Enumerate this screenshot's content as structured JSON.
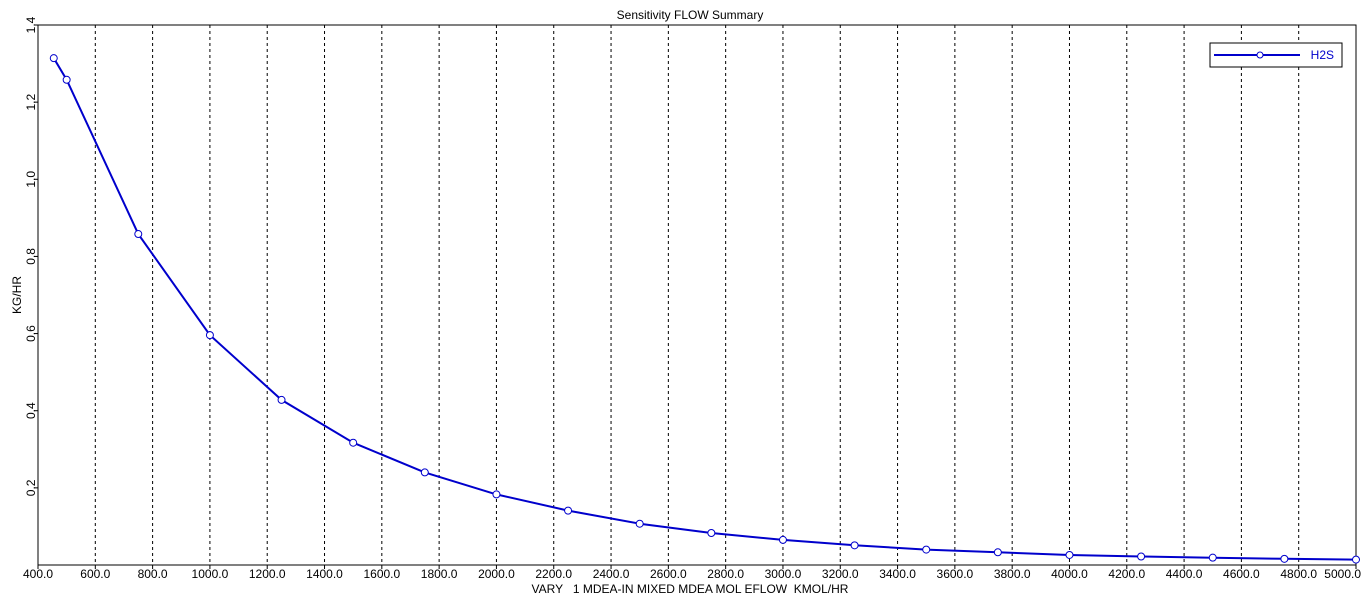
{
  "chart_data": {
    "type": "line",
    "title": "Sensitivity FLOW Summary",
    "xlabel": "VARY   1 MDEA-IN MIXED MDEA MOL EFLOW  KMOL/HR",
    "ylabel": "KG/HR",
    "xlim": [
      400,
      5000
    ],
    "ylim": [
      0,
      1.4
    ],
    "x_ticks": [
      "400.0",
      "600.0",
      "800.0",
      "1000.0",
      "1200.0",
      "1400.0",
      "1600.0",
      "1800.0",
      "2000.0",
      "2200.0",
      "2400.0",
      "2600.0",
      "2800.0",
      "3000.0",
      "3200.0",
      "3400.0",
      "3600.0",
      "3800.0",
      "4000.0",
      "4200.0",
      "4400.0",
      "4600.0",
      "4800.0",
      "5000.0"
    ],
    "y_ticks": [
      "0.2",
      "0.4",
      "0.6",
      "0.8",
      "1.0",
      "1.2",
      "1.4"
    ],
    "grid": "vertical dashed",
    "legend_position": "top-right",
    "series": [
      {
        "name": "H2S",
        "color": "#0000cc",
        "marker": "circle",
        "x": [
          455,
          500,
          750,
          1000,
          1250,
          1500,
          1750,
          2000,
          2250,
          2500,
          2750,
          3000,
          3250,
          3500,
          3750,
          4000,
          4250,
          4500,
          4750,
          5000
        ],
        "y": [
          1.314,
          1.258,
          0.858,
          0.596,
          0.428,
          0.317,
          0.24,
          0.183,
          0.141,
          0.107,
          0.083,
          0.065,
          0.051,
          0.04,
          0.033,
          0.026,
          0.022,
          0.019,
          0.016,
          0.014
        ]
      }
    ]
  }
}
